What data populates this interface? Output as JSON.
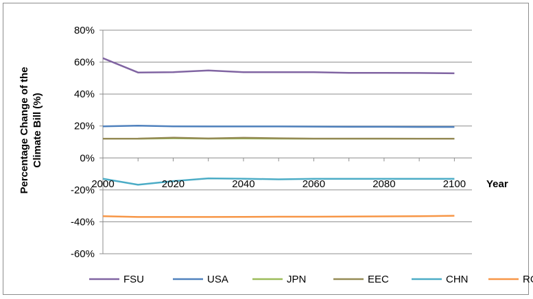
{
  "chart_data": {
    "type": "line",
    "title": "",
    "xlabel": "Year",
    "ylabel": "Percentage Change of the Climate Bill (%)",
    "ylabel_lines": [
      "Percentage Change of the",
      "Climate Bill (%)"
    ],
    "ylim": [
      -0.6,
      0.8
    ],
    "y_ticks": [
      0.8,
      0.6,
      0.4,
      0.2,
      0,
      -0.2,
      -0.4,
      -0.6
    ],
    "y_tick_labels": [
      "80%",
      "60%",
      "40%",
      "20%",
      "0%",
      "-20%",
      "-40%",
      "-60%"
    ],
    "x": [
      2000,
      2010,
      2020,
      2030,
      2040,
      2050,
      2060,
      2070,
      2080,
      2090,
      2100
    ],
    "x_tick_labels": [
      "2000",
      "2020",
      "2040",
      "2060",
      "2080",
      "2100"
    ],
    "grid": true,
    "legend_position": "bottom",
    "series": [
      {
        "name": "FSU",
        "color": "#8064a2",
        "values": [
          0.625,
          0.535,
          0.537,
          0.548,
          0.537,
          0.537,
          0.537,
          0.533,
          0.533,
          0.532,
          0.53
        ]
      },
      {
        "name": "USA",
        "color": "#4f81bd",
        "values": [
          0.198,
          0.202,
          0.198,
          0.197,
          0.197,
          0.197,
          0.196,
          0.195,
          0.195,
          0.194,
          0.194
        ]
      },
      {
        "name": "JPN",
        "color": "#9bbb59",
        "values": [
          0.12,
          0.12,
          0.123,
          0.121,
          0.122,
          0.121,
          0.12,
          0.12,
          0.12,
          0.12,
          0.12
        ]
      },
      {
        "name": "EEC",
        "color": "#948a54",
        "values": [
          0.12,
          0.121,
          0.127,
          0.122,
          0.126,
          0.123,
          0.121,
          0.121,
          0.121,
          0.12,
          0.12
        ]
      },
      {
        "name": "CHN",
        "color": "#4bacc6",
        "values": [
          -0.13,
          -0.168,
          -0.145,
          -0.128,
          -0.13,
          -0.134,
          -0.131,
          -0.131,
          -0.131,
          -0.131,
          -0.131
        ]
      },
      {
        "name": "ROW",
        "color": "#f79646",
        "values": [
          -0.365,
          -0.37,
          -0.37,
          -0.37,
          -0.369,
          -0.368,
          -0.368,
          -0.367,
          -0.366,
          -0.365,
          -0.362
        ]
      }
    ]
  }
}
